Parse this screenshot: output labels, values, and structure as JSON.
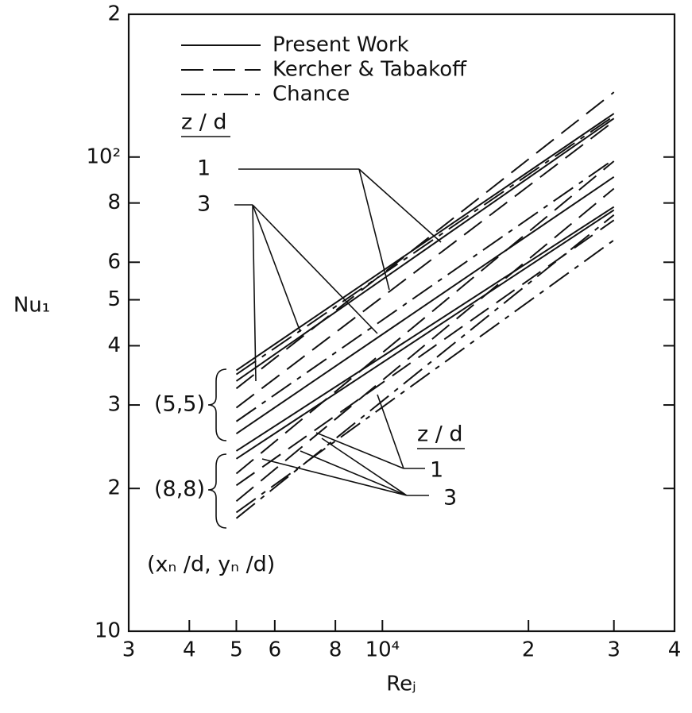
{
  "chart_data": {
    "type": "line",
    "xlabel": "Reⱼ",
    "ylabel": "Nu₁",
    "xscale": "log",
    "yscale": "log",
    "xlim": [
      3000,
      40000
    ],
    "ylim": [
      10,
      200
    ],
    "xticks": [
      {
        "value": 3000,
        "label": "3"
      },
      {
        "value": 4000,
        "label": "4"
      },
      {
        "value": 5000,
        "label": "5"
      },
      {
        "value": 6000,
        "label": "6"
      },
      {
        "value": 8000,
        "label": "8"
      },
      {
        "value": 10000,
        "label": "10⁴"
      },
      {
        "value": 20000,
        "label": "2"
      },
      {
        "value": 30000,
        "label": "3"
      },
      {
        "value": 40000,
        "label": "4"
      }
    ],
    "yticks": [
      10,
      {
        "value": 20,
        "label": "2"
      },
      {
        "value": 30,
        "label": "3"
      },
      {
        "value": 40,
        "label": "4"
      },
      {
        "value": 50,
        "label": "5"
      },
      {
        "value": 60,
        "label": "6"
      },
      {
        "value": 80,
        "label": "8"
      },
      {
        "value": 100,
        "label": "10²"
      },
      {
        "value": 200,
        "label": "2"
      }
    ],
    "legend": "upper left",
    "color": "#111",
    "series": [
      {
        "name": "Present Work",
        "style": "solid",
        "lines": [
          {
            "x": [
              5000,
              30000
            ],
            "y": [
              35.5,
              123.5
            ]
          },
          {
            "x": [
              5000,
              30000
            ],
            "y": [
              33.7,
              120.6
            ]
          },
          {
            "x": [
              5000,
              30000
            ],
            "y": [
              26.1,
              90.8
            ]
          },
          {
            "x": [
              5000,
              30000
            ],
            "y": [
              24.0,
              78.5
            ]
          },
          {
            "x": [
              5000,
              30000
            ],
            "y": [
              23.1,
              77.3
            ]
          }
        ]
      },
      {
        "name": "Kercher & Tabakoff",
        "style": "dashed",
        "lines": [
          {
            "x": [
              5000,
              30000
            ],
            "y": [
              32.5,
              137
            ]
          },
          {
            "x": [
              5000,
              30000
            ],
            "y": [
              29.6,
              119
            ]
          },
          {
            "x": [
              5000,
              30000
            ],
            "y": [
              21.5,
              98
            ]
          },
          {
            "x": [
              5000,
              30000
            ],
            "y": [
              18.8,
              85.8
            ]
          },
          {
            "x": [
              5000,
              30000
            ],
            "y": [
              20.3,
              73.6
            ]
          }
        ]
      },
      {
        "name": "Chance",
        "style": "dashdot",
        "lines": [
          {
            "x": [
              5000,
              30000
            ],
            "y": [
              34.8,
              122
            ]
          },
          {
            "x": [
              5000,
              30000
            ],
            "y": [
              27.7,
              98.9
            ]
          },
          {
            "x": [
              5000,
              30000
            ],
            "y": [
              17.3,
              75.5
            ]
          },
          {
            "x": [
              5000,
              30000
            ],
            "y": [
              17.8,
              66.8
            ]
          }
        ]
      }
    ],
    "annotations": [
      "z / d",
      "1",
      "3",
      "(5,5)",
      "(8,8)",
      "z / d",
      "1",
      "3",
      "(xₙ /d, yₙ /d)"
    ]
  }
}
